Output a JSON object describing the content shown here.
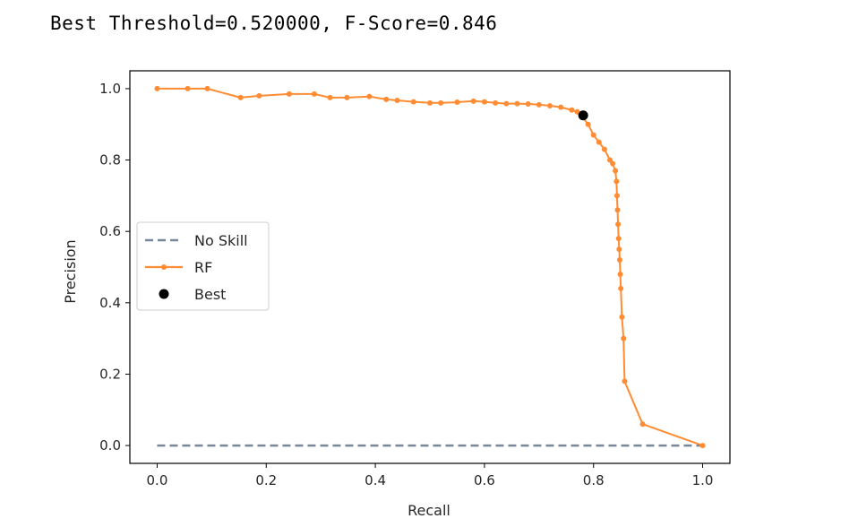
{
  "output": {
    "text": "Best Threshold=0.520000, F-Score=0.846"
  },
  "chart_data": {
    "type": "line",
    "title": "",
    "xlabel": "Recall",
    "ylabel": "Precision",
    "xlim": [
      -0.05,
      1.05
    ],
    "ylim": [
      -0.05,
      1.05
    ],
    "xticks": [
      0.0,
      0.2,
      0.4,
      0.6,
      0.8,
      1.0
    ],
    "xtick_labels": [
      "0.0",
      "0.2",
      "0.4",
      "0.6",
      "0.8",
      "1.0"
    ],
    "yticks": [
      0.0,
      0.2,
      0.4,
      0.6,
      0.8,
      1.0
    ],
    "ytick_labels": [
      "0.0",
      "0.2",
      "0.4",
      "0.6",
      "0.8",
      "1.0"
    ],
    "grid": false,
    "legend": {
      "position": "center-left",
      "entries": [
        "No Skill",
        "RF",
        "Best"
      ]
    },
    "series": [
      {
        "name": "No Skill",
        "style": "dashed",
        "color": "#778899",
        "x": [
          0,
          1
        ],
        "y": [
          0.0,
          0.0
        ]
      },
      {
        "name": "RF",
        "style": "line-marker",
        "color": "#ff8c33",
        "x": [
          0.0,
          0.056,
          0.092,
          0.153,
          0.187,
          0.242,
          0.288,
          0.317,
          0.348,
          0.389,
          0.42,
          0.44,
          0.47,
          0.5,
          0.52,
          0.55,
          0.58,
          0.6,
          0.62,
          0.64,
          0.66,
          0.68,
          0.7,
          0.72,
          0.74,
          0.76,
          0.77,
          0.78,
          0.79,
          0.8,
          0.81,
          0.82,
          0.83,
          0.835,
          0.84,
          0.842,
          0.843,
          0.844,
          0.845,
          0.846,
          0.847,
          0.848,
          0.849,
          0.85,
          0.852,
          0.855,
          0.857,
          0.89,
          1.0
        ],
        "y": [
          1.0,
          1.0,
          1.0,
          0.975,
          0.98,
          0.985,
          0.985,
          0.975,
          0.975,
          0.978,
          0.97,
          0.967,
          0.963,
          0.96,
          0.96,
          0.962,
          0.965,
          0.963,
          0.96,
          0.958,
          0.958,
          0.957,
          0.955,
          0.952,
          0.948,
          0.94,
          0.935,
          0.92,
          0.9,
          0.87,
          0.85,
          0.83,
          0.8,
          0.79,
          0.77,
          0.74,
          0.7,
          0.66,
          0.62,
          0.58,
          0.55,
          0.52,
          0.48,
          0.44,
          0.36,
          0.3,
          0.18,
          0.06,
          0.0
        ]
      },
      {
        "name": "Best",
        "style": "marker",
        "color": "#000000",
        "x": [
          0.781
        ],
        "y": [
          0.925
        ]
      }
    ]
  }
}
